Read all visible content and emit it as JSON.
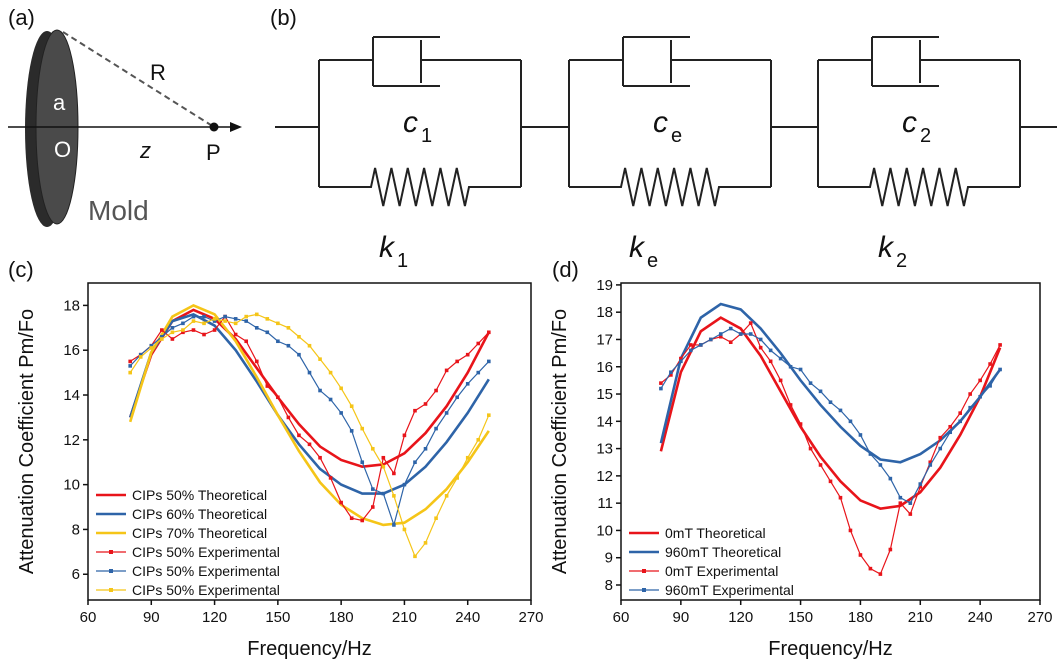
{
  "diagram_a": {
    "panel": "(a)",
    "labels": {
      "R": "R",
      "a": "a",
      "O": "O",
      "z": "z",
      "P": "P",
      "mold": "Mold"
    }
  },
  "diagram_b": {
    "panel": "(b)",
    "units": [
      {
        "damper": {
          "symbol": "c",
          "subscript": "1"
        },
        "spring": {
          "symbol": "k",
          "subscript": "1"
        }
      },
      {
        "damper": {
          "symbol": "c",
          "subscript": "e"
        },
        "spring": {
          "symbol": "k",
          "subscript": "e"
        }
      },
      {
        "damper": {
          "symbol": "c",
          "subscript": "2"
        },
        "spring": {
          "symbol": "k",
          "subscript": "2"
        }
      }
    ]
  },
  "chart_data": [
    {
      "type": "line",
      "panel": "(c)",
      "xlabel": "Frequency/Hz",
      "ylabel": "Attenuation Coefficient Pm/Fo",
      "xlim": [
        60,
        270
      ],
      "xticks": [
        60,
        90,
        120,
        150,
        180,
        210,
        240,
        270
      ],
      "ylim": [
        4.85,
        19
      ],
      "yticks": [
        6,
        8,
        10,
        12,
        14,
        16,
        18
      ],
      "legend": "lower left",
      "series": [
        {
          "name": "CIPs 50% Theoretical",
          "color": "#e8141a",
          "x": [
            80,
            90,
            100,
            110,
            120,
            130,
            140,
            150,
            160,
            170,
            180,
            190,
            200,
            210,
            220,
            230,
            240,
            250
          ],
          "values": [
            13.0,
            15.8,
            17.3,
            17.8,
            17.4,
            16.5,
            15.2,
            13.9,
            12.7,
            11.7,
            11.1,
            10.8,
            10.9,
            11.4,
            12.3,
            13.5,
            15.0,
            16.8
          ]
        },
        {
          "name": "CIPs 60% Theoretical",
          "color": "#2e64a8",
          "x": [
            80,
            90,
            100,
            110,
            120,
            130,
            140,
            150,
            160,
            170,
            180,
            190,
            200,
            210,
            220,
            230,
            240,
            250
          ],
          "values": [
            13.0,
            15.9,
            17.3,
            17.6,
            17.1,
            16.0,
            14.6,
            13.1,
            11.8,
            10.7,
            10.0,
            9.6,
            9.6,
            10.0,
            10.8,
            11.9,
            13.2,
            14.7
          ]
        },
        {
          "name": "CIPs 70% Theoretical",
          "color": "#f5c518",
          "x": [
            80,
            90,
            100,
            110,
            120,
            130,
            140,
            150,
            160,
            170,
            180,
            190,
            200,
            210,
            220,
            230,
            240,
            250
          ],
          "values": [
            12.8,
            15.9,
            17.5,
            18.0,
            17.6,
            16.4,
            14.8,
            13.1,
            11.5,
            10.1,
            9.1,
            8.5,
            8.2,
            8.3,
            8.9,
            9.8,
            11.0,
            12.4
          ]
        },
        {
          "name": "CIPs 50% Experimental",
          "color": "#e8141a",
          "markers": true,
          "x": [
            80,
            85,
            90,
            95,
            100,
            105,
            110,
            115,
            120,
            125,
            130,
            135,
            140,
            145,
            150,
            155,
            160,
            165,
            170,
            175,
            180,
            185,
            190,
            195,
            200,
            205,
            210,
            215,
            220,
            225,
            230,
            235,
            240,
            245,
            250
          ],
          "values": [
            15.5,
            15.8,
            16.2,
            16.9,
            16.5,
            16.8,
            16.9,
            16.7,
            16.9,
            17.5,
            16.7,
            16.4,
            15.5,
            14.4,
            13.9,
            13.0,
            12.2,
            11.8,
            11.2,
            10.3,
            9.2,
            8.5,
            8.4,
            9.0,
            11.2,
            10.5,
            12.2,
            13.3,
            13.6,
            14.2,
            15.1,
            15.5,
            15.8,
            16.3,
            16.8
          ]
        },
        {
          "name": "CIPs 50% Experimental",
          "color": "#2e64a8",
          "markers": true,
          "x": [
            80,
            85,
            90,
            95,
            100,
            105,
            110,
            115,
            120,
            125,
            130,
            135,
            140,
            145,
            150,
            155,
            160,
            165,
            170,
            175,
            180,
            185,
            190,
            195,
            200,
            205,
            210,
            215,
            220,
            225,
            230,
            235,
            240,
            245,
            250
          ],
          "values": [
            15.3,
            15.8,
            16.2,
            16.6,
            17.0,
            17.2,
            17.5,
            17.5,
            17.3,
            17.5,
            17.4,
            17.3,
            17.0,
            16.8,
            16.4,
            16.2,
            15.8,
            15.0,
            14.2,
            13.8,
            13.2,
            12.4,
            11.0,
            9.8,
            9.6,
            8.2,
            10.0,
            11.0,
            11.6,
            12.5,
            13.2,
            13.9,
            14.5,
            15.0,
            15.5
          ]
        },
        {
          "name": "CIPs 50% Experimental",
          "color": "#f5c518",
          "markers": true,
          "x": [
            80,
            85,
            90,
            95,
            100,
            105,
            110,
            115,
            120,
            125,
            130,
            135,
            140,
            145,
            150,
            155,
            160,
            165,
            170,
            175,
            180,
            185,
            190,
            195,
            200,
            205,
            210,
            215,
            220,
            225,
            230,
            235,
            240,
            245,
            250
          ],
          "values": [
            15.0,
            15.7,
            16.1,
            16.5,
            16.8,
            16.9,
            17.3,
            17.2,
            17.4,
            17.3,
            17.2,
            17.5,
            17.6,
            17.4,
            17.2,
            17.0,
            16.6,
            16.2,
            15.6,
            15.0,
            14.3,
            13.5,
            12.5,
            11.6,
            10.8,
            9.5,
            8.0,
            6.8,
            7.4,
            8.5,
            9.5,
            10.3,
            11.2,
            12.0,
            13.1
          ]
        }
      ]
    },
    {
      "type": "line",
      "panel": "(d)",
      "xlabel": "Frequency/Hz",
      "ylabel": "Attenuation Coefficient Pm/Fo",
      "xlim": [
        60,
        270
      ],
      "xticks": [
        60,
        90,
        120,
        150,
        180,
        210,
        240,
        270
      ],
      "ylim": [
        7.45,
        19.07
      ],
      "yticks": [
        8,
        9,
        10,
        11,
        12,
        13,
        14,
        15,
        16,
        17,
        18,
        19
      ],
      "legend": "lower left",
      "series": [
        {
          "name": "0mT Theoretical",
          "color": "#e8141a",
          "x": [
            80,
            90,
            100,
            110,
            120,
            130,
            140,
            150,
            160,
            170,
            180,
            190,
            200,
            210,
            220,
            230,
            240,
            250
          ],
          "values": [
            12.9,
            15.8,
            17.3,
            17.8,
            17.4,
            16.4,
            15.1,
            13.8,
            12.7,
            11.8,
            11.1,
            10.8,
            10.9,
            11.4,
            12.3,
            13.5,
            14.9,
            16.7
          ]
        },
        {
          "name": "960mT Theoretical",
          "color": "#2e64a8",
          "x": [
            80,
            90,
            100,
            110,
            120,
            130,
            140,
            150,
            160,
            170,
            180,
            190,
            200,
            210,
            220,
            230,
            240,
            250
          ],
          "values": [
            13.2,
            16.3,
            17.8,
            18.3,
            18.1,
            17.4,
            16.5,
            15.5,
            14.6,
            13.8,
            13.1,
            12.6,
            12.5,
            12.8,
            13.3,
            14.0,
            14.9,
            15.9
          ]
        },
        {
          "name": "0mT Experimental",
          "color": "#e8141a",
          "markers": true,
          "x": [
            80,
            85,
            90,
            95,
            100,
            105,
            110,
            115,
            120,
            125,
            130,
            135,
            140,
            145,
            150,
            155,
            160,
            165,
            170,
            175,
            180,
            185,
            190,
            195,
            200,
            205,
            210,
            215,
            220,
            225,
            230,
            235,
            240,
            245,
            250
          ],
          "values": [
            15.4,
            15.7,
            16.3,
            16.8,
            16.8,
            17.0,
            17.1,
            16.9,
            17.2,
            17.6,
            16.7,
            16.2,
            15.5,
            14.6,
            13.9,
            13.0,
            12.4,
            11.8,
            11.2,
            10.0,
            9.1,
            8.6,
            8.4,
            9.3,
            11.0,
            10.6,
            11.6,
            12.5,
            13.4,
            13.8,
            14.3,
            15.0,
            15.5,
            16.1,
            16.8
          ]
        },
        {
          "name": "960mT Experimental",
          "color": "#2e64a8",
          "markers": true,
          "x": [
            80,
            85,
            90,
            95,
            100,
            105,
            110,
            115,
            120,
            125,
            130,
            135,
            140,
            145,
            150,
            155,
            160,
            165,
            170,
            175,
            180,
            185,
            190,
            195,
            200,
            205,
            210,
            215,
            220,
            225,
            230,
            235,
            240,
            245,
            250
          ],
          "values": [
            15.2,
            15.8,
            16.2,
            16.6,
            16.8,
            17.0,
            17.2,
            17.4,
            17.2,
            17.2,
            17.0,
            16.6,
            16.3,
            16.0,
            15.9,
            15.4,
            15.1,
            14.7,
            14.4,
            14.0,
            13.5,
            12.8,
            12.4,
            11.9,
            11.2,
            11.0,
            11.7,
            12.4,
            13.0,
            13.6,
            14.0,
            14.5,
            14.9,
            15.3,
            15.9
          ]
        }
      ]
    }
  ]
}
